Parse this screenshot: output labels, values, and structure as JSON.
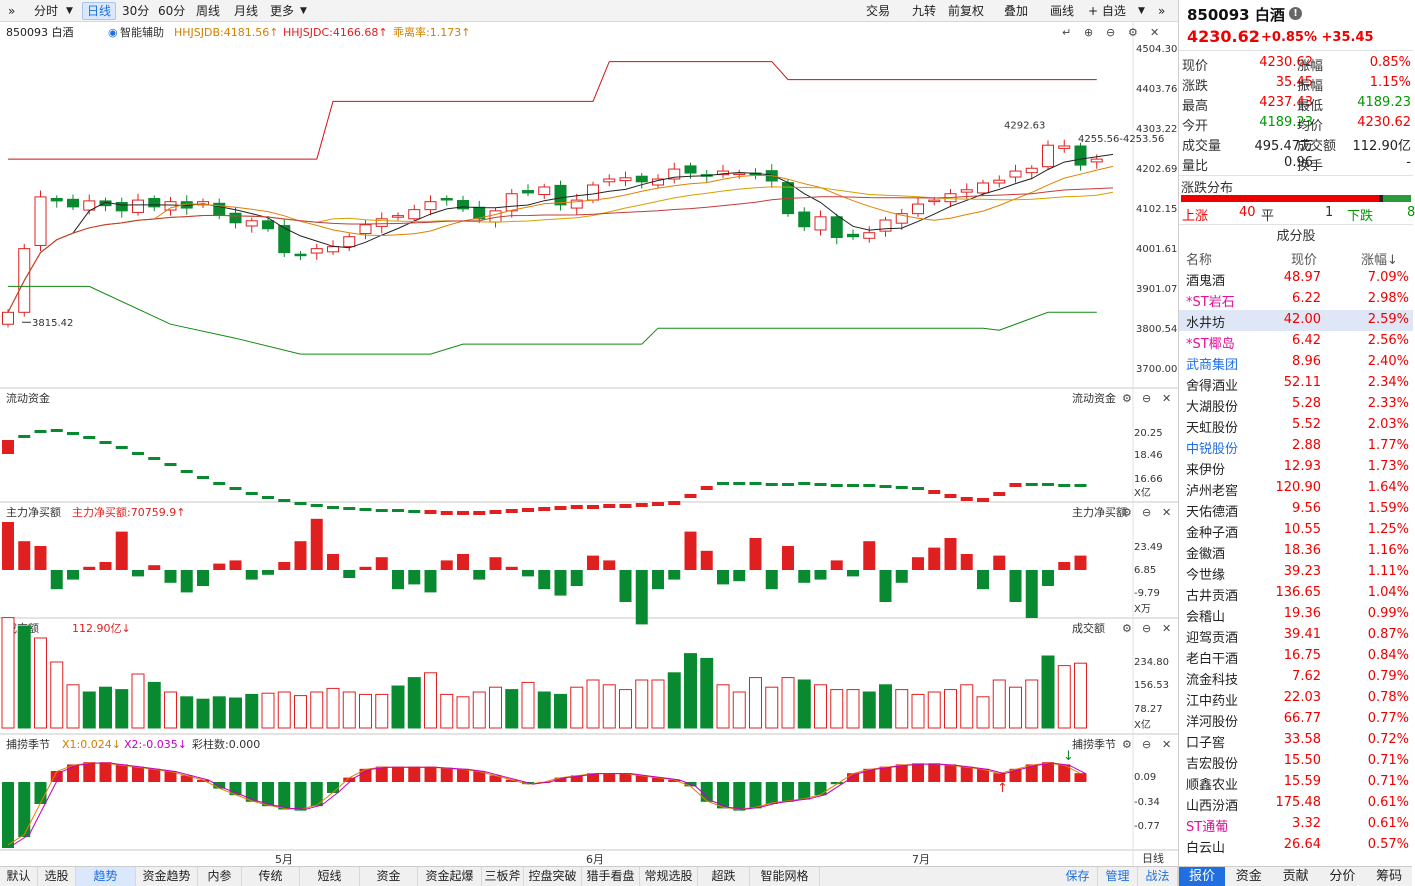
{
  "toolbar": {
    "expand": "»",
    "tabs_left": [
      "分时",
      "日线",
      "30分",
      "60分",
      "周线",
      "月线",
      "更多"
    ],
    "tabs_right": [
      "交易",
      "九转",
      "前复权",
      "叠加",
      "画线",
      "+ 自选"
    ],
    "collapse": "»"
  },
  "main_chart": {
    "symbol_label": "850093 白酒",
    "assist_label": "智能辅助",
    "ind1": "HHJSJDB:4181.56↑",
    "ind2": "HHJSJDC:4166.68↑",
    "ind3": "乖离率:1.173↑",
    "y_ticks": [
      "4504.30",
      "4403.76",
      "4303.22",
      "4202.69",
      "4102.15",
      "4001.61",
      "3901.07",
      "3800.54",
      "3700.00"
    ],
    "hi_label": "4292.63",
    "right_label": "4255.56-4253.56",
    "lo_label": "3815.42",
    "colors": {
      "up": "#e02020",
      "down": "#0a8a30",
      "ma_black": "#222222",
      "ma_orange": "#e08000",
      "ma_gold": "#d4a000",
      "ma_brown": "#c23b3b",
      "band_red": "#d01010",
      "band_green": "#108a10"
    }
  },
  "flow_panel": {
    "title": "流动资金",
    "right_title": "流动资金",
    "y_ticks": [
      "20.25",
      "18.46",
      "16.66"
    ],
    "unit": "X亿"
  },
  "net_panel": {
    "title": "主力净买额",
    "value_label": "主力净买额:70759.9↑",
    "right_title": "主力净买额",
    "y_ticks": [
      "23.49",
      "6.85",
      "-9.79"
    ],
    "unit": "X万"
  },
  "vol_panel": {
    "title": "成交额",
    "value_label": "112.90亿↓",
    "right_title": "成交额",
    "y_ticks": [
      "234.80",
      "156.53",
      "78.27"
    ],
    "unit": "X亿"
  },
  "season_panel": {
    "title": "捕捞季节",
    "x1": "X1:0.024↓",
    "x2": "X2:-0.035↓",
    "col": "彩柱数:0.000",
    "right_title": "捕捞季节",
    "y_ticks": [
      "0.09",
      "-0.34",
      "-0.77"
    ]
  },
  "x_axis": {
    "labels": [
      "5月",
      "6月",
      "7月"
    ],
    "period": "日线"
  },
  "quote": {
    "title": "850093 白酒",
    "price": "4230.62",
    "change": "+0.85%  +35.45",
    "rows": [
      [
        "现价",
        "4230.62",
        "涨幅",
        "0.85%"
      ],
      [
        "涨跌",
        "35.45",
        "振幅",
        "1.15%"
      ],
      [
        "最高",
        "4237.43",
        "最低",
        "4189.23"
      ],
      [
        "今开",
        "4189.23",
        "均价",
        "4230.62"
      ],
      [
        "成交量",
        "495.47万",
        "成交额",
        "112.90亿"
      ],
      [
        "量比",
        "0.96",
        "换手",
        "-"
      ]
    ],
    "dist_title": "涨跌分布",
    "up_label": "上涨",
    "up_count": "40",
    "flat_label": "平",
    "flat_count": "1",
    "down_label": "下跌",
    "down_count": "8"
  },
  "constituents": {
    "title": "成分股",
    "col_name": "名称",
    "col_price": "现价",
    "col_chg": "涨幅↓",
    "rows": [
      [
        "酒鬼酒",
        "48.97",
        "7.09%"
      ],
      [
        "*ST岩石",
        "6.22",
        "2.98%"
      ],
      [
        "水井坊",
        "42.00",
        "2.59%"
      ],
      [
        "*ST椰岛",
        "6.42",
        "2.56%"
      ],
      [
        "武商集团",
        "8.96",
        "2.40%"
      ],
      [
        "舍得酒业",
        "52.11",
        "2.34%"
      ],
      [
        "大湖股份",
        "5.28",
        "2.33%"
      ],
      [
        "天虹股份",
        "5.52",
        "2.03%"
      ],
      [
        "中锐股份",
        "2.88",
        "1.77%"
      ],
      [
        "来伊份",
        "12.93",
        "1.73%"
      ],
      [
        "泸州老窖",
        "120.90",
        "1.64%"
      ],
      [
        "天佑德酒",
        "9.56",
        "1.59%"
      ],
      [
        "金种子酒",
        "10.55",
        "1.25%"
      ],
      [
        "金徽酒",
        "18.36",
        "1.16%"
      ],
      [
        "今世缘",
        "39.23",
        "1.11%"
      ],
      [
        "古井贡酒",
        "136.65",
        "1.04%"
      ],
      [
        "会稽山",
        "19.36",
        "0.99%"
      ],
      [
        "迎驾贡酒",
        "39.41",
        "0.87%"
      ],
      [
        "老白干酒",
        "16.75",
        "0.84%"
      ],
      [
        "流金科技",
        "7.62",
        "0.79%"
      ],
      [
        "江中药业",
        "22.03",
        "0.78%"
      ],
      [
        "洋河股份",
        "66.77",
        "0.77%"
      ],
      [
        "口子窖",
        "33.58",
        "0.72%"
      ],
      [
        "吉宏股份",
        "15.50",
        "0.71%"
      ],
      [
        "顺鑫农业",
        "15.59",
        "0.71%"
      ],
      [
        "山西汾酒",
        "175.48",
        "0.61%"
      ],
      [
        "ST通葡",
        "3.32",
        "0.61%"
      ],
      [
        "白云山",
        "26.64",
        "0.57%"
      ]
    ]
  },
  "bottom_tabs": [
    "默认",
    "选股",
    "趋势",
    "资金趋势",
    "内参",
    "传统",
    "短线",
    "资金",
    "资金起爆",
    "三板斧",
    "控盘突破",
    "猎手看盘",
    "常规选股",
    "超跌",
    "智能网格"
  ],
  "bottom_right": [
    "保存",
    "管理",
    "战法"
  ],
  "right_tabs": [
    "报价",
    "资金",
    "贡献",
    "分价",
    "筹码"
  ]
}
